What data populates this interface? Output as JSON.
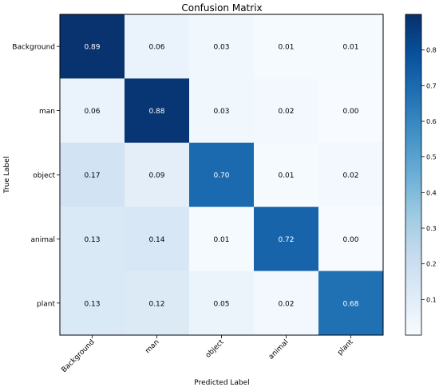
{
  "chart_data": {
    "type": "heatmap",
    "title": "Confusion Matrix",
    "xlabel": "Predicted Label",
    "ylabel": "True Label",
    "x_categories": [
      "Background",
      "man",
      "object",
      "animal",
      "plant"
    ],
    "y_categories": [
      "Background",
      "man",
      "object",
      "animal",
      "plant"
    ],
    "values": [
      [
        0.89,
        0.06,
        0.03,
        0.01,
        0.01
      ],
      [
        0.06,
        0.88,
        0.03,
        0.02,
        0.0
      ],
      [
        0.17,
        0.09,
        0.7,
        0.01,
        0.02
      ],
      [
        0.13,
        0.14,
        0.01,
        0.72,
        0.0
      ],
      [
        0.13,
        0.12,
        0.05,
        0.02,
        0.68
      ]
    ],
    "value_format": "0.00",
    "colormap": "Blues",
    "colorbar": {
      "range": [
        0.0,
        0.9
      ],
      "ticks": [
        0.1,
        0.2,
        0.3,
        0.4,
        0.5,
        0.6,
        0.7,
        0.8
      ]
    }
  }
}
